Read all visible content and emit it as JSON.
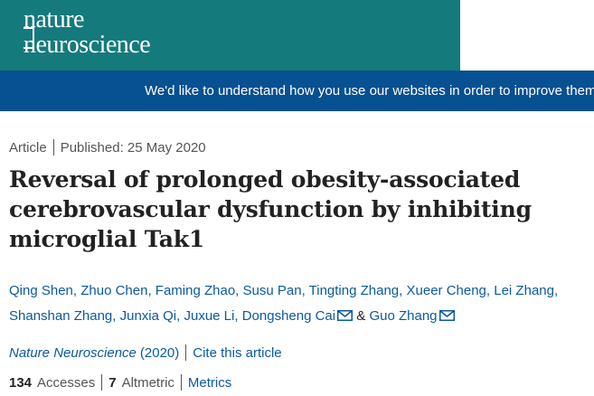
{
  "header": {
    "brand_line1": "nature",
    "brand_line2": "neuroscience",
    "brand_color": "#157a7c"
  },
  "banner": {
    "text": "We'd like to understand how you use our websites in order to improve them.",
    "background": "#075091"
  },
  "article_meta": {
    "type": "Article",
    "published": "Published: 25 May 2020"
  },
  "title": "Reversal of prolonged obesity-associated cerebrovascular dysfunction by inhibiting microglial Tak1",
  "authors": {
    "list": [
      "Qing Shen",
      "Zhuo Chen",
      "Faming Zhao",
      "Susu Pan",
      "Tingting Zhang",
      "Xueer Cheng",
      "Lei Zhang",
      "Shanshan Zhang",
      "Junxia Qi",
      "Juxue Li",
      "Dongsheng Cai"
    ],
    "separator": ",",
    "last_author": "Guo Zhang",
    "conjunction": "&",
    "icons": [
      "mail-icon"
    ]
  },
  "journal": {
    "name": "Nature Neuroscience",
    "year": "(2020)",
    "cite_label": "Cite this article"
  },
  "metrics": {
    "accesses_count": "134",
    "accesses_label": "Accesses",
    "altmetric_count": "7",
    "altmetric_label": "Altmetric",
    "metrics_link": "Metrics"
  },
  "colors": {
    "link": "#0a5a9e",
    "text": "#222222",
    "muted": "#555555"
  }
}
